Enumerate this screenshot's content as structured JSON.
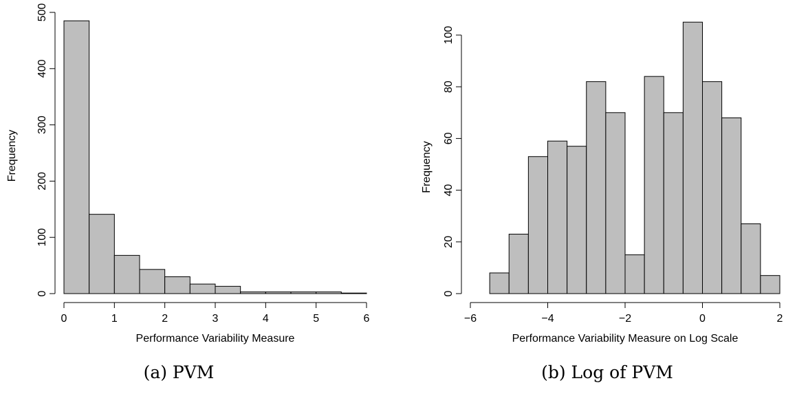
{
  "chart_data": [
    {
      "type": "bar",
      "subtype": "histogram",
      "caption": "(a) PVM",
      "xlabel": "Performance Variability Measure",
      "ylabel": "Frequency",
      "bin_edges": [
        0,
        0.5,
        1,
        1.5,
        2,
        2.5,
        3,
        3.5,
        4,
        4.5,
        5,
        5.5,
        6
      ],
      "values": [
        485,
        141,
        68,
        43,
        30,
        17,
        13,
        3,
        3,
        3,
        3,
        1
      ],
      "xlim": [
        0,
        6
      ],
      "ylim": [
        0,
        500
      ],
      "xticks": [
        0,
        1,
        2,
        3,
        4,
        5,
        6
      ],
      "yticks": [
        0,
        100,
        200,
        300,
        400,
        500
      ],
      "colors": {
        "bar_fill": "#bebebe",
        "bar_stroke": "#000000"
      }
    },
    {
      "type": "bar",
      "subtype": "histogram",
      "caption": "(b) Log of PVM",
      "xlabel": "Performance Variability Measure on Log Scale",
      "ylabel": "Frequency",
      "bin_edges": [
        -5.5,
        -5,
        -4.5,
        -4,
        -3.5,
        -3,
        -2.5,
        -2,
        -1.5,
        -1,
        -0.5,
        0,
        0.5,
        1,
        1.5,
        2
      ],
      "values": [
        8,
        23,
        53,
        59,
        57,
        82,
        70,
        15,
        84,
        70,
        105,
        82,
        68,
        27,
        7
      ],
      "xlim": [
        -6,
        2
      ],
      "ylim": [
        0,
        100
      ],
      "xticks": [
        -6,
        -4,
        -2,
        0,
        2
      ],
      "xtick_labels": [
        "−6",
        "−4",
        "−2",
        "0",
        "2"
      ],
      "yticks": [
        0,
        20,
        40,
        60,
        80,
        100
      ],
      "colors": {
        "bar_fill": "#bebebe",
        "bar_stroke": "#000000"
      }
    }
  ]
}
